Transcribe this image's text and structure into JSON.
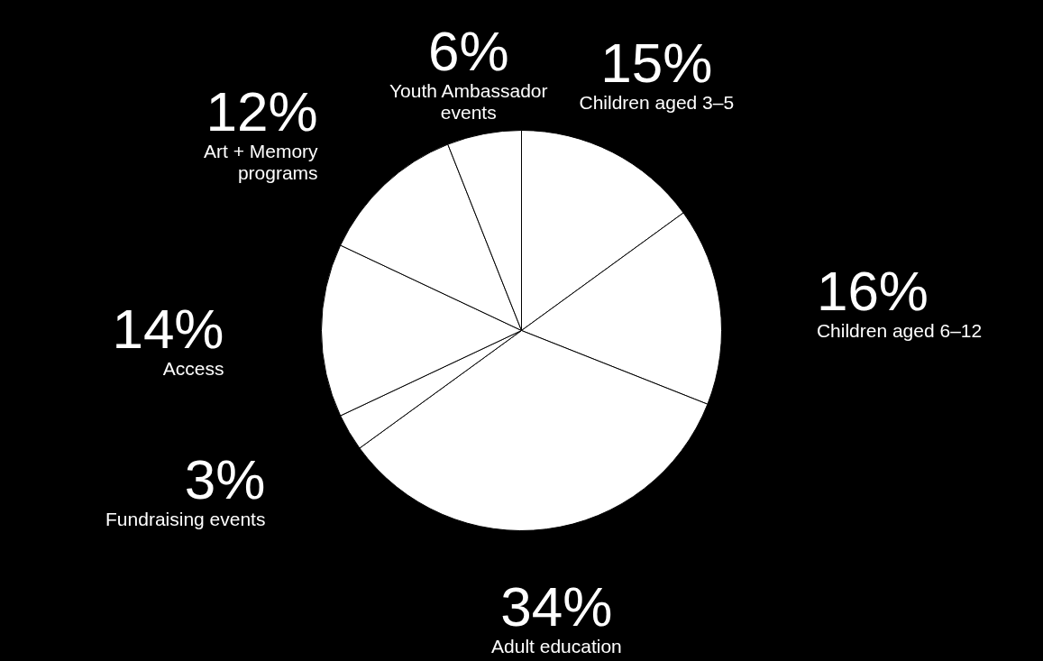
{
  "chart_data": {
    "type": "pie",
    "categories": [
      "Children aged 3–5",
      "Children aged 6–12",
      "Adult education",
      "Fundraising events",
      "Access",
      "Art + Memory programs",
      "Youth Ambassador events"
    ],
    "values": [
      15,
      16,
      34,
      3,
      14,
      12,
      6
    ],
    "value_labels": [
      "15%",
      "16%",
      "34%",
      "3%",
      "14%",
      "12%",
      "6%"
    ],
    "colors": [
      "#ffffff",
      "#ffffff",
      "#ffffff",
      "#ffffff",
      "#ffffff",
      "#ffffff",
      "#ffffff"
    ]
  }
}
